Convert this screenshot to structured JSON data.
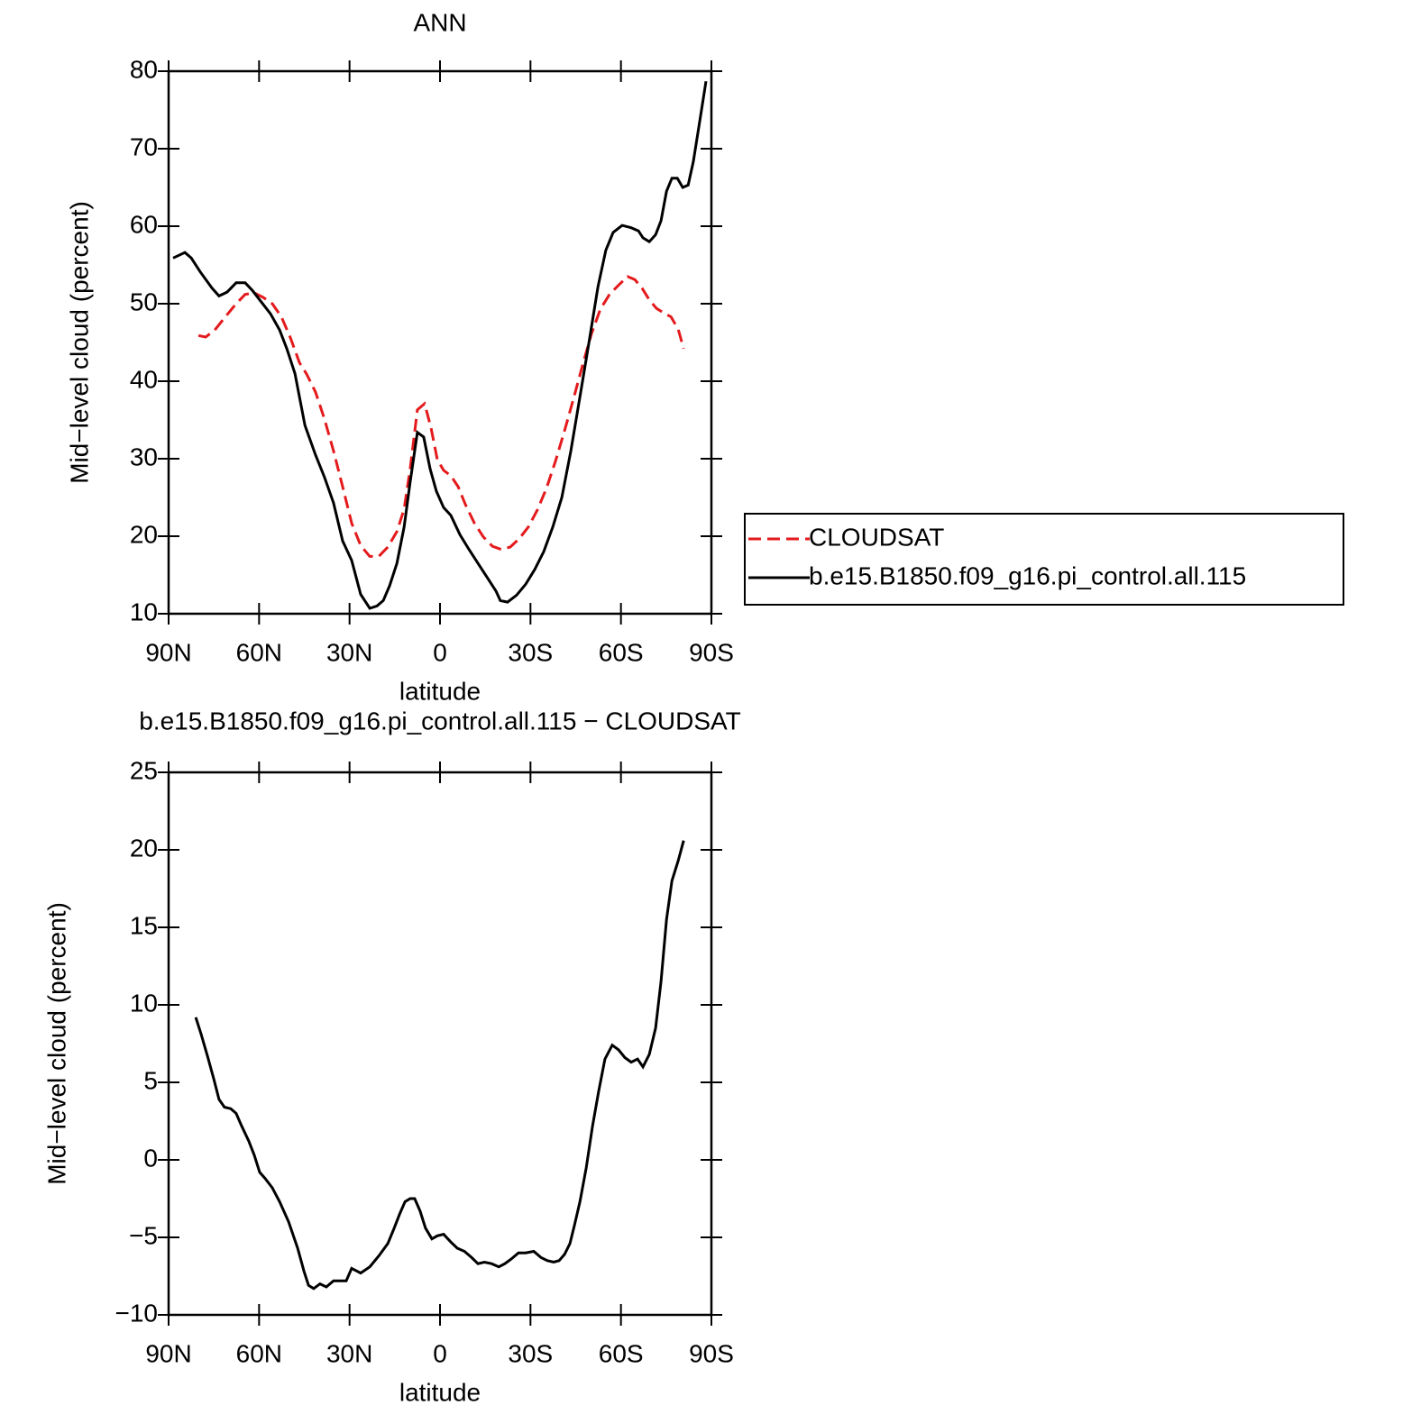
{
  "chart_data": [
    {
      "type": "line",
      "title": "ANN",
      "xlabel": "latitude",
      "ylabel": "Mid−level cloud (percent)",
      "xlim": [
        90,
        -90
      ],
      "xticks": [
        {
          "value": 90,
          "label": "90N"
        },
        {
          "value": 60,
          "label": "60N"
        },
        {
          "value": 30,
          "label": "30N"
        },
        0,
        {
          "value": -30,
          "label": "30S"
        },
        {
          "value": -60,
          "label": "60S"
        },
        {
          "value": -90,
          "label": "90S"
        }
      ],
      "ylim": [
        10,
        80
      ],
      "yticks": [
        10,
        20,
        30,
        40,
        50,
        60,
        70,
        80
      ],
      "legend": "right",
      "series": [
        {
          "name": "CLOUDSAT",
          "color": "#e41a1c",
          "style": "dashed",
          "x": [
            80.1,
            77.7,
            74.7,
            71.2,
            67.6,
            64.6,
            61.6,
            58.6,
            55.6,
            52.6,
            49.6,
            46.6,
            44.2,
            41.3,
            38.3,
            35.3,
            32.3,
            29.3,
            26.3,
            23.3,
            20.3,
            17.3,
            14.3,
            11.9,
            9.9,
            7.5,
            5.1,
            3.0,
            0.9,
            -1.2,
            -3.6,
            -6.0,
            -8.4,
            -11.4,
            -14.4,
            -17.4,
            -20.3,
            -23.3,
            -26.3,
            -29.3,
            -32.3,
            -35.3,
            -38.3,
            -41.3,
            -44.3,
            -47.3,
            -50.3,
            -53.2,
            -56.2,
            -59.2,
            -62.2,
            -64.6,
            -67.0,
            -69.4,
            -71.8,
            -74.2,
            -76.6,
            -79.0,
            -80.8
          ],
          "values": [
            45.9,
            45.7,
            46.6,
            48.3,
            50.0,
            51.2,
            51.4,
            50.8,
            50.0,
            48.3,
            45.6,
            42.4,
            40.9,
            38.6,
            35.1,
            31.0,
            26.4,
            21.7,
            18.8,
            17.4,
            17.4,
            18.6,
            20.6,
            23.5,
            28.7,
            36.3,
            37.1,
            34.0,
            29.9,
            28.5,
            27.8,
            26.4,
            24.1,
            21.7,
            19.9,
            18.7,
            18.3,
            18.6,
            19.7,
            21.2,
            23.4,
            26.2,
            29.7,
            33.6,
            37.8,
            42.1,
            46.2,
            49.3,
            51.2,
            52.4,
            53.5,
            53.1,
            52.0,
            50.5,
            49.4,
            48.8,
            48.3,
            46.7,
            44.2
          ]
        },
        {
          "name": "b.e15.B1850.f09_g16.pi_control.all.115",
          "color": "#000000",
          "style": "solid",
          "x": [
            88.5,
            84.6,
            82.5,
            79.5,
            75.6,
            73.3,
            70.6,
            67.6,
            64.6,
            62.2,
            59.2,
            56.2,
            53.2,
            50.8,
            48.1,
            44.8,
            41.3,
            38.3,
            35.3,
            32.3,
            29.3,
            26.3,
            23.3,
            20.9,
            18.8,
            16.7,
            14.3,
            11.9,
            9.9,
            7.5,
            5.4,
            3.3,
            1.2,
            -1.2,
            -3.6,
            -6.6,
            -9.6,
            -12.6,
            -15.6,
            -18.6,
            -20.0,
            -22.4,
            -25.4,
            -28.4,
            -31.4,
            -34.4,
            -37.4,
            -40.4,
            -43.4,
            -46.4,
            -49.4,
            -52.4,
            -55.0,
            -57.4,
            -60.4,
            -63.4,
            -65.8,
            -67.3,
            -69.4,
            -71.5,
            -73.3,
            -75.1,
            -76.9,
            -78.7,
            -80.5,
            -82.3,
            -84.0,
            -86.1,
            -88.2
          ],
          "values": [
            55.9,
            56.6,
            55.9,
            54.1,
            52.0,
            51.0,
            51.5,
            52.7,
            52.7,
            51.7,
            50.2,
            48.7,
            46.6,
            44.2,
            41.0,
            34.3,
            30.5,
            27.6,
            24.3,
            19.4,
            16.9,
            12.5,
            10.7,
            11.0,
            11.7,
            13.6,
            16.5,
            21.2,
            27.0,
            33.4,
            32.8,
            28.7,
            25.8,
            23.7,
            22.7,
            20.2,
            18.3,
            16.5,
            14.7,
            12.9,
            11.7,
            11.5,
            12.4,
            13.8,
            15.7,
            18.0,
            21.2,
            25.0,
            31.0,
            38.0,
            45.0,
            52.2,
            56.9,
            59.2,
            60.1,
            59.8,
            59.4,
            58.5,
            58.0,
            58.9,
            60.7,
            64.5,
            66.2,
            66.2,
            65.0,
            65.3,
            68.3,
            73.5,
            78.7
          ]
        }
      ]
    },
    {
      "type": "line",
      "title": "b.e15.B1850.f09_g16.pi_control.all.115 − CLOUDSAT",
      "xlabel": "latitude",
      "ylabel": "Mid−level cloud (percent)",
      "xlim": [
        90,
        -90
      ],
      "xticks": [
        {
          "value": 90,
          "label": "90N"
        },
        {
          "value": 60,
          "label": "60N"
        },
        {
          "value": 30,
          "label": "30N"
        },
        0,
        {
          "value": -30,
          "label": "30S"
        },
        {
          "value": -60,
          "label": "60S"
        },
        {
          "value": -90,
          "label": "90S"
        }
      ],
      "ylim": [
        -10,
        25
      ],
      "yticks": [
        {
          "value": -10,
          "label": "−10"
        },
        {
          "value": -5,
          "label": "−5"
        },
        0,
        5,
        10,
        15,
        20,
        25
      ],
      "series": [
        {
          "color": "#000000",
          "style": "solid",
          "x": [
            81.0,
            79.2,
            77.1,
            75.0,
            73.3,
            71.5,
            69.4,
            67.6,
            65.8,
            63.4,
            61.6,
            59.8,
            58.0,
            55.6,
            53.2,
            50.2,
            47.2,
            45.1,
            43.6,
            41.9,
            39.8,
            37.7,
            35.3,
            32.9,
            31.1,
            29.3,
            26.3,
            23.3,
            20.3,
            17.3,
            15.2,
            13.4,
            11.6,
            9.9,
            8.4,
            6.6,
            4.8,
            2.7,
            0.9,
            -1.2,
            -3.6,
            -5.7,
            -8.1,
            -10.5,
            -12.6,
            -14.7,
            -17.1,
            -19.5,
            -21.5,
            -23.6,
            -26.0,
            -28.4,
            -31.1,
            -33.5,
            -35.6,
            -37.7,
            -39.5,
            -41.3,
            -43.1,
            -44.6,
            -46.4,
            -48.5,
            -50.6,
            -52.6,
            -54.7,
            -57.1,
            -59.2,
            -61.3,
            -63.4,
            -65.5,
            -67.3,
            -69.4,
            -71.5,
            -73.3,
            -75.1,
            -76.9,
            -79.0,
            -80.8
          ],
          "values": [
            9.2,
            8.1,
            6.7,
            5.2,
            3.9,
            3.4,
            3.3,
            3.0,
            2.2,
            1.2,
            0.3,
            -0.8,
            -1.2,
            -1.8,
            -2.7,
            -4.0,
            -5.7,
            -7.2,
            -8.1,
            -8.3,
            -8.0,
            -8.2,
            -7.8,
            -7.8,
            -7.8,
            -7.0,
            -7.3,
            -6.9,
            -6.2,
            -5.4,
            -4.4,
            -3.5,
            -2.7,
            -2.5,
            -2.5,
            -3.3,
            -4.4,
            -5.1,
            -4.9,
            -4.8,
            -5.3,
            -5.7,
            -5.9,
            -6.3,
            -6.7,
            -6.6,
            -6.7,
            -6.9,
            -6.7,
            -6.4,
            -6.0,
            -6.0,
            -5.9,
            -6.3,
            -6.5,
            -6.6,
            -6.5,
            -6.1,
            -5.4,
            -4.2,
            -2.7,
            -0.5,
            2.2,
            4.4,
            6.5,
            7.4,
            7.1,
            6.6,
            6.3,
            6.5,
            6.0,
            6.8,
            8.5,
            11.5,
            15.5,
            18.0,
            19.3,
            20.6
          ]
        }
      ]
    }
  ]
}
